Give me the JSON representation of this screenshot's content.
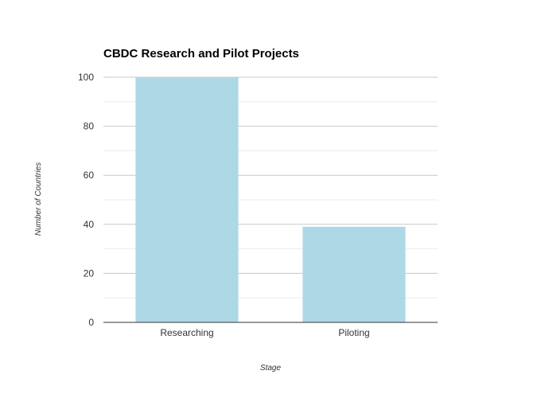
{
  "chart_data": {
    "type": "bar",
    "title": "CBDC Research and Pilot Projects",
    "xlabel": "Stage",
    "ylabel": "Number of Countries",
    "categories": [
      "Researching",
      "Piloting"
    ],
    "values": [
      100,
      39
    ],
    "ylim": [
      0,
      100
    ],
    "yticks": [
      0,
      20,
      40,
      60,
      80,
      100
    ],
    "minor_grid": true,
    "grid": true,
    "colors": {
      "bar": "#add8e6"
    }
  }
}
